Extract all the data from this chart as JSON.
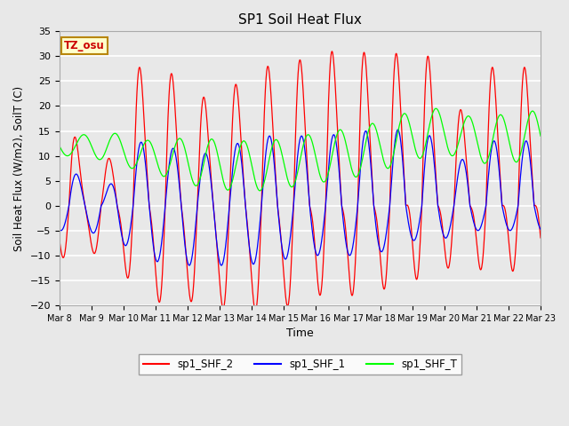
{
  "title": "SP1 Soil Heat Flux",
  "xlabel": "Time",
  "ylabel": "Soil Heat Flux (W/m2), SoilT (C)",
  "ylim": [
    -20,
    35
  ],
  "xtick_labels": [
    "Mar 8",
    "Mar 9",
    "Mar 10",
    "Mar 11",
    "Mar 12",
    "Mar 13",
    "Mar 14",
    "Mar 15",
    "Mar 16",
    "Mar 17",
    "Mar 18",
    "Mar 19",
    "Mar 20",
    "Mar 21",
    "Mar 22",
    "Mar 23"
  ],
  "bg_color": "#e8e8e8",
  "grid_color": "#ffffff",
  "legend_labels": [
    "sp1_SHF_2",
    "sp1_SHF_1",
    "sp1_SHF_T"
  ],
  "tz_label": "TZ_osu",
  "n_days": 15,
  "samples_per_day": 96,
  "red_peaks": [
    15,
    -9,
    4,
    -10,
    26,
    -17,
    26,
    -17,
    20,
    -19,
    22,
    -19,
    26,
    -19,
    27,
    -15,
    29,
    -15,
    29,
    -15,
    28,
    -11,
    31,
    -11,
    16,
    -10,
    26,
    -10
  ],
  "blue_peaks": [
    8,
    -5,
    1,
    -7,
    13,
    -11,
    12,
    -12,
    10,
    -12,
    12,
    -12,
    14,
    -11,
    14,
    -10,
    14,
    -10,
    15,
    -10,
    15,
    -7,
    16,
    -7,
    8,
    -5,
    13,
    -5
  ],
  "green_base": 11.0,
  "green_amp": 3.0,
  "green_trend": 7.0
}
